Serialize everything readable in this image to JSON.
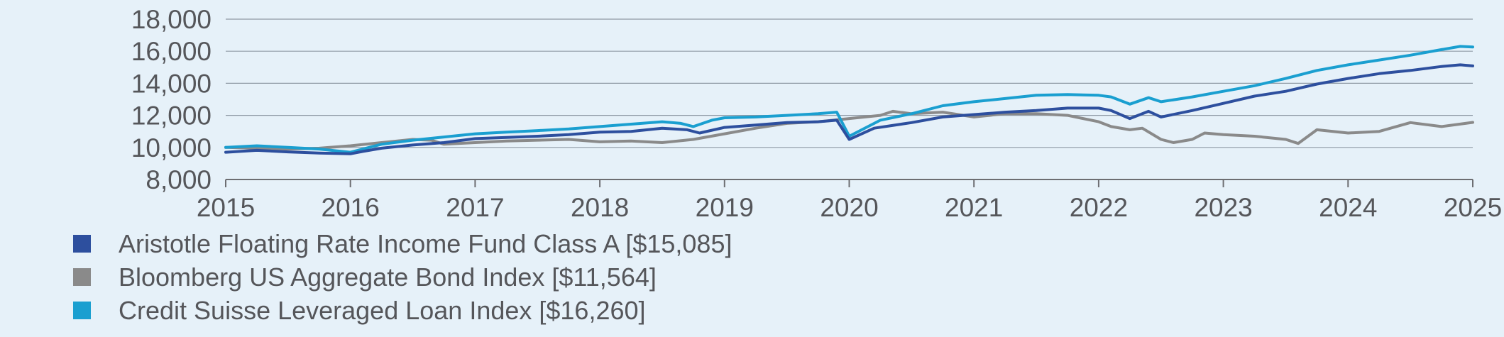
{
  "chart_data": {
    "type": "line",
    "x_ticks": [
      "2015",
      "2016",
      "2017",
      "2018",
      "2019",
      "2020",
      "2021",
      "2022",
      "2023",
      "2024",
      "2025"
    ],
    "y_ticks": [
      "8,000",
      "10,000",
      "12,000",
      "14,000",
      "16,000",
      "18,000"
    ],
    "xlim": [
      2015,
      2025
    ],
    "ylim": [
      8000,
      18000
    ],
    "grid": "horizontal",
    "legend_position": "bottom",
    "series": [
      {
        "name": "Aristotle Floating Rate Income Fund Class A [$15,085]",
        "color": "#2d4f9e",
        "points": [
          [
            2015.0,
            9700
          ],
          [
            2015.25,
            9820
          ],
          [
            2015.5,
            9720
          ],
          [
            2015.75,
            9650
          ],
          [
            2016.0,
            9600
          ],
          [
            2016.1,
            9750
          ],
          [
            2016.25,
            9950
          ],
          [
            2016.5,
            10150
          ],
          [
            2016.75,
            10300
          ],
          [
            2017.0,
            10550
          ],
          [
            2017.25,
            10620
          ],
          [
            2017.5,
            10700
          ],
          [
            2017.75,
            10800
          ],
          [
            2018.0,
            10950
          ],
          [
            2018.25,
            11000
          ],
          [
            2018.5,
            11200
          ],
          [
            2018.7,
            11100
          ],
          [
            2018.8,
            10900
          ],
          [
            2019.0,
            11250
          ],
          [
            2019.25,
            11400
          ],
          [
            2019.5,
            11550
          ],
          [
            2019.75,
            11600
          ],
          [
            2019.9,
            11700
          ],
          [
            2020.0,
            10500
          ],
          [
            2020.2,
            11200
          ],
          [
            2020.5,
            11550
          ],
          [
            2020.75,
            11900
          ],
          [
            2021.0,
            12050
          ],
          [
            2021.25,
            12200
          ],
          [
            2021.5,
            12300
          ],
          [
            2021.75,
            12450
          ],
          [
            2022.0,
            12450
          ],
          [
            2022.1,
            12300
          ],
          [
            2022.25,
            11800
          ],
          [
            2022.4,
            12250
          ],
          [
            2022.5,
            11900
          ],
          [
            2022.75,
            12300
          ],
          [
            2023.0,
            12750
          ],
          [
            2023.25,
            13200
          ],
          [
            2023.5,
            13500
          ],
          [
            2023.75,
            13950
          ],
          [
            2024.0,
            14300
          ],
          [
            2024.25,
            14600
          ],
          [
            2024.5,
            14800
          ],
          [
            2024.75,
            15050
          ],
          [
            2024.9,
            15150
          ],
          [
            2025.0,
            15085
          ]
        ]
      },
      {
        "name": "Bloomberg US Aggregate Bond Index [$11,564]",
        "color": "#8a8a8a",
        "points": [
          [
            2015.0,
            10000
          ],
          [
            2015.25,
            9950
          ],
          [
            2015.5,
            9900
          ],
          [
            2015.75,
            9950
          ],
          [
            2016.0,
            10100
          ],
          [
            2016.25,
            10300
          ],
          [
            2016.5,
            10500
          ],
          [
            2016.65,
            10450
          ],
          [
            2016.75,
            10200
          ],
          [
            2017.0,
            10300
          ],
          [
            2017.25,
            10400
          ],
          [
            2017.5,
            10450
          ],
          [
            2017.75,
            10500
          ],
          [
            2018.0,
            10350
          ],
          [
            2018.25,
            10400
          ],
          [
            2018.5,
            10300
          ],
          [
            2018.75,
            10500
          ],
          [
            2019.0,
            10850
          ],
          [
            2019.25,
            11200
          ],
          [
            2019.5,
            11500
          ],
          [
            2019.75,
            11600
          ],
          [
            2020.0,
            11800
          ],
          [
            2020.25,
            12000
          ],
          [
            2020.35,
            12250
          ],
          [
            2020.5,
            12100
          ],
          [
            2020.75,
            12200
          ],
          [
            2021.0,
            11900
          ],
          [
            2021.25,
            12100
          ],
          [
            2021.5,
            12100
          ],
          [
            2021.75,
            12000
          ],
          [
            2022.0,
            11600
          ],
          [
            2022.1,
            11300
          ],
          [
            2022.25,
            11100
          ],
          [
            2022.35,
            11200
          ],
          [
            2022.5,
            10500
          ],
          [
            2022.6,
            10300
          ],
          [
            2022.75,
            10500
          ],
          [
            2022.85,
            10900
          ],
          [
            2023.0,
            10800
          ],
          [
            2023.25,
            10700
          ],
          [
            2023.5,
            10500
          ],
          [
            2023.6,
            10250
          ],
          [
            2023.75,
            11100
          ],
          [
            2024.0,
            10900
          ],
          [
            2024.25,
            11000
          ],
          [
            2024.5,
            11550
          ],
          [
            2024.75,
            11300
          ],
          [
            2025.0,
            11564
          ]
        ]
      },
      {
        "name": "Credit Suisse Leveraged Loan Index [$16,260]",
        "color": "#1a9fd0",
        "points": [
          [
            2015.0,
            10000
          ],
          [
            2015.25,
            10100
          ],
          [
            2015.5,
            10000
          ],
          [
            2015.75,
            9900
          ],
          [
            2016.0,
            9700
          ],
          [
            2016.1,
            9900
          ],
          [
            2016.25,
            10200
          ],
          [
            2016.5,
            10450
          ],
          [
            2016.75,
            10650
          ],
          [
            2017.0,
            10850
          ],
          [
            2017.25,
            10950
          ],
          [
            2017.5,
            11050
          ],
          [
            2017.75,
            11150
          ],
          [
            2018.0,
            11300
          ],
          [
            2018.25,
            11450
          ],
          [
            2018.5,
            11600
          ],
          [
            2018.65,
            11500
          ],
          [
            2018.75,
            11300
          ],
          [
            2018.9,
            11700
          ],
          [
            2019.0,
            11850
          ],
          [
            2019.25,
            11900
          ],
          [
            2019.5,
            12000
          ],
          [
            2019.75,
            12100
          ],
          [
            2019.9,
            12200
          ],
          [
            2020.0,
            10700
          ],
          [
            2020.25,
            11700
          ],
          [
            2020.5,
            12100
          ],
          [
            2020.75,
            12600
          ],
          [
            2021.0,
            12850
          ],
          [
            2021.25,
            13050
          ],
          [
            2021.5,
            13250
          ],
          [
            2021.75,
            13300
          ],
          [
            2022.0,
            13250
          ],
          [
            2022.1,
            13150
          ],
          [
            2022.25,
            12700
          ],
          [
            2022.4,
            13100
          ],
          [
            2022.5,
            12850
          ],
          [
            2022.75,
            13150
          ],
          [
            2023.0,
            13500
          ],
          [
            2023.25,
            13850
          ],
          [
            2023.5,
            14300
          ],
          [
            2023.75,
            14800
          ],
          [
            2024.0,
            15150
          ],
          [
            2024.25,
            15450
          ],
          [
            2024.5,
            15750
          ],
          [
            2024.75,
            16100
          ],
          [
            2024.9,
            16300
          ],
          [
            2025.0,
            16260
          ]
        ]
      }
    ]
  }
}
